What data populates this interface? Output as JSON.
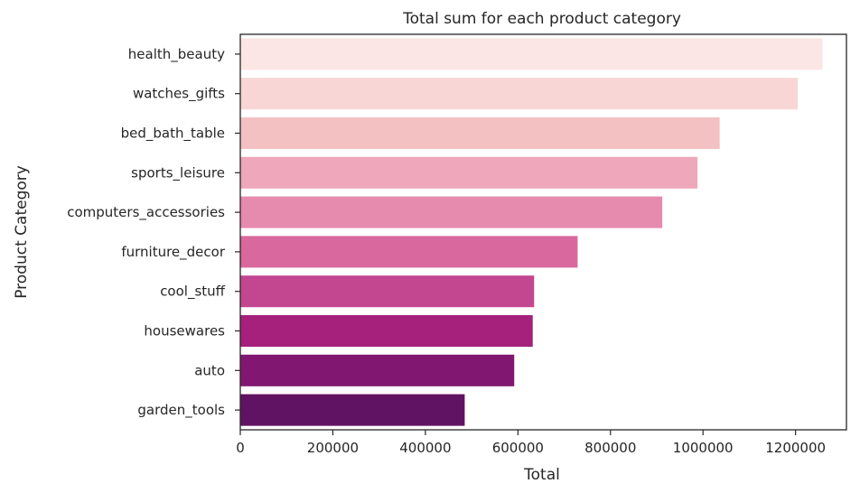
{
  "chart_data": {
    "type": "bar",
    "orientation": "horizontal",
    "title": "Total sum for each product category",
    "xlabel": "Total",
    "ylabel": "Product Category",
    "categories": [
      "health_beauty",
      "watches_gifts",
      "bed_bath_table",
      "sports_leisure",
      "computers_accessories",
      "furniture_decor",
      "cool_stuff",
      "housewares",
      "auto",
      "garden_tools"
    ],
    "values": [
      1258000,
      1205000,
      1036000,
      988000,
      912000,
      729000,
      635000,
      632000,
      592000,
      485000
    ],
    "xlim": [
      0,
      1310000
    ],
    "xticks": [
      0,
      200000,
      400000,
      600000,
      800000,
      1000000,
      1200000
    ],
    "xtick_labels": [
      "0",
      "200000",
      "400000",
      "600000",
      "800000",
      "1000000",
      "1200000"
    ],
    "grid": false,
    "colors": [
      "#fce6e5",
      "#f8d6d5",
      "#f4c1c3",
      "#efa7bb",
      "#e68aae",
      "#d9689e",
      "#c34690",
      "#a5217c",
      "#811770",
      "#601363"
    ]
  }
}
